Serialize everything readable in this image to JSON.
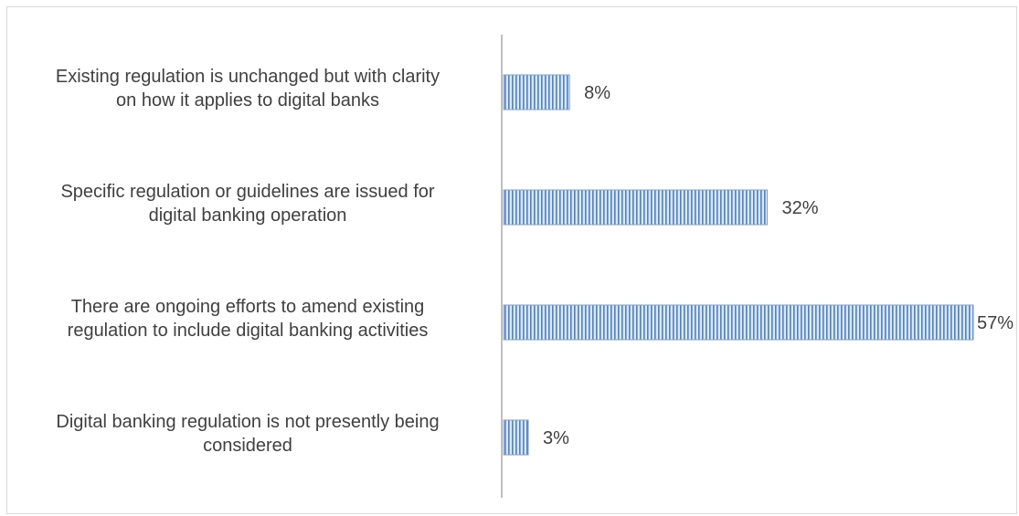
{
  "chart_data": {
    "type": "bar",
    "orientation": "horizontal",
    "categories": [
      [
        "Existing regulation is unchanged but with clarity",
        "on how it applies to digital banks"
      ],
      [
        "Specific regulation or guidelines are issued for",
        "digital banking operation"
      ],
      [
        "There are ongoing efforts to amend existing",
        "regulation to include digital banking activities"
      ],
      [
        "Digital banking regulation is not presently being",
        "considered"
      ]
    ],
    "values": [
      8,
      32,
      57,
      3
    ],
    "value_labels": [
      "8%",
      "32%",
      "57%",
      "3%"
    ],
    "unit": "%",
    "xlim": [
      0,
      57
    ],
    "grid": false,
    "legend": "none",
    "colors": {
      "bar_fill": "#dbe7f5",
      "bar_stripe": "#4f81bd",
      "bar_edge": "#7fa2cf",
      "axis": "#bfbfbf",
      "text": "#404040",
      "border": "#d9d9d9"
    }
  }
}
